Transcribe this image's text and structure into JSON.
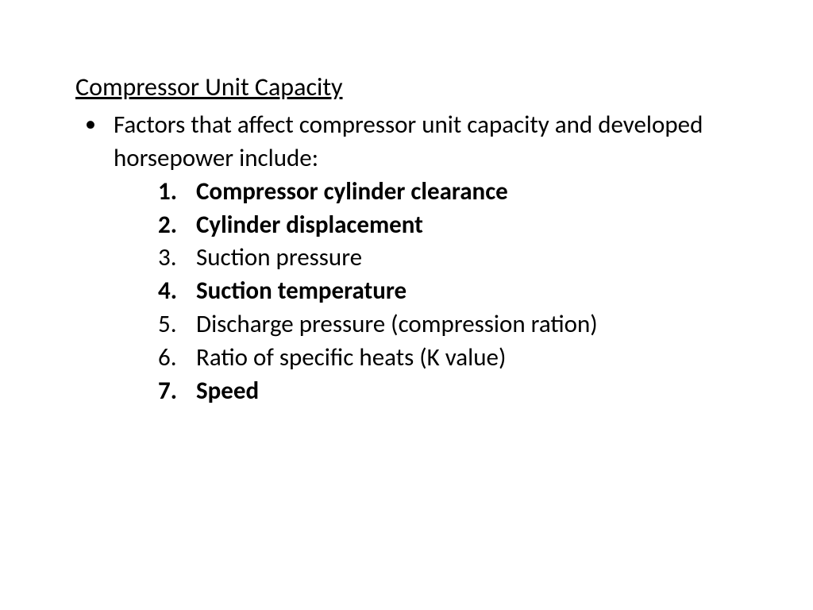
{
  "title": "Compressor Unit Capacity",
  "intro": "Factors that affect compressor unit capacity and developed horsepower include:",
  "items": [
    {
      "text": "Compressor cylinder clearance",
      "bold": true
    },
    {
      "text": "Cylinder displacement",
      "bold": true
    },
    {
      "text": "Suction pressure",
      "bold": false
    },
    {
      "text": "Suction temperature",
      "bold": true
    },
    {
      "text": "Discharge pressure (compression ration)",
      "bold": false
    },
    {
      "text": "Ratio of specific heats (K value)",
      "bold": false
    },
    {
      "text": "Speed",
      "bold": true
    }
  ],
  "colors": {
    "background": "#ffffff",
    "text": "#000000"
  },
  "typography": {
    "title_fontsize": 32,
    "body_fontsize": 31,
    "font_family": "Calibri"
  }
}
